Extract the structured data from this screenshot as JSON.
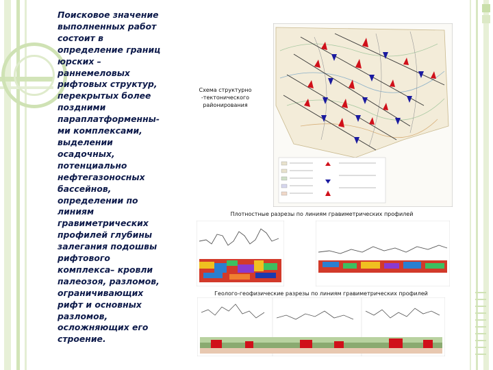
{
  "slide": {
    "body_text": "Поисковое значение\nвыполненных работ\nсостоит в\nопределение  границ\nюрских –\nраннемеловых\nрифтовых структур,\nперекрытых более\nпоздними\nпараплатформенны-\nми комплексами,\nвыделении\nосадочных,\nпотенциально\nнефтегазоносных\nбассейнов,\nопределении по\nлиниям\nгравиметрических\nпрофилей глубины\nзалегания подошвы\nрифтового\nкомплекса– кровли\nпалеозоя, разломов,\nограничивающих\nрифт и основных\nразломов,\nосложняющих его\nстроение.",
    "caption_scheme": "Схема структурно\n-тектонического\nрайонирования",
    "caption_density": "Плотностные разрезы по линиям гравиметрических профилей",
    "caption_geo": "Геолого-геофизические разрезы по линиям гравиметрических профилей"
  },
  "colors": {
    "text": "#0d1a4a",
    "frame_green": "#cfe2b4",
    "fault_red": "#d0101a",
    "fault_blue": "#1a1aa0"
  }
}
